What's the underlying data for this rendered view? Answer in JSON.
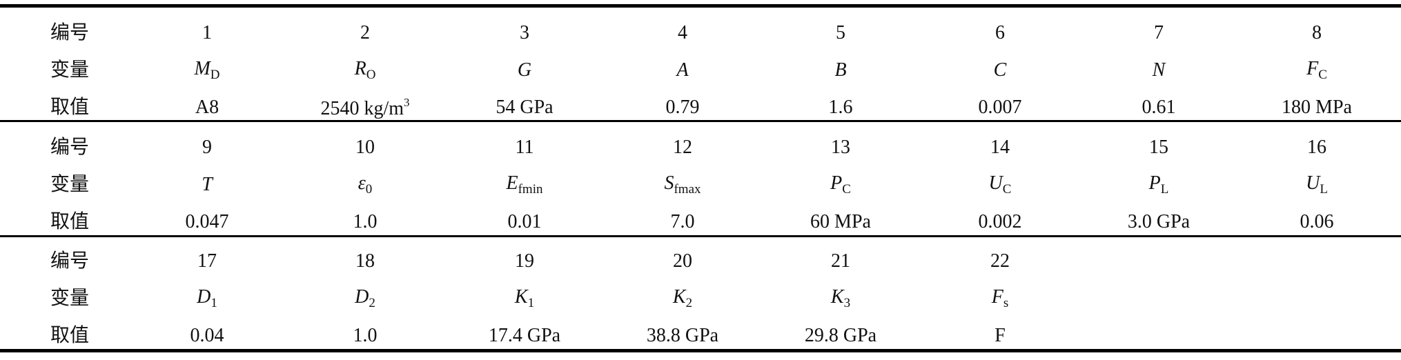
{
  "blocks": [
    {
      "row_labels": [
        "编号",
        "变量",
        "取值"
      ],
      "numbers": [
        1,
        2,
        3,
        4,
        5,
        6,
        7,
        8
      ],
      "variables": [
        {
          "base": "M",
          "sub": "D"
        },
        {
          "base": "R",
          "sub": "O"
        },
        {
          "base": "G"
        },
        {
          "base": "A"
        },
        {
          "base": "B"
        },
        {
          "base": "C"
        },
        {
          "base": "N"
        },
        {
          "base": "F",
          "sub": "C"
        }
      ],
      "values": [
        "A8",
        {
          "base": "2540 kg/m",
          "sup": "3"
        },
        "54 GPa",
        "0.79",
        "1.6",
        "0.007",
        "0.61",
        "180 MPa"
      ]
    },
    {
      "row_labels": [
        "编号",
        "变量",
        "取值"
      ],
      "numbers": [
        9,
        10,
        11,
        12,
        13,
        14,
        15,
        16
      ],
      "variables": [
        {
          "base": "T"
        },
        {
          "base": "ε",
          "sub": "0"
        },
        {
          "base": "E",
          "sub": "fmin"
        },
        {
          "base": "S",
          "sub": "fmax"
        },
        {
          "base": "P",
          "sub": "C"
        },
        {
          "base": "U",
          "sub": "C"
        },
        {
          "base": "P",
          "sub": "L"
        },
        {
          "base": "U",
          "sub": "L"
        }
      ],
      "values": [
        "0.047",
        "1.0",
        "0.01",
        "7.0",
        "60 MPa",
        "0.002",
        "3.0 GPa",
        "0.06"
      ]
    },
    {
      "row_labels": [
        "编号",
        "变量",
        "取值"
      ],
      "numbers": [
        17,
        18,
        19,
        20,
        21,
        22
      ],
      "variables": [
        {
          "base": "D",
          "sub": "1"
        },
        {
          "base": "D",
          "sub": "2"
        },
        {
          "base": "K",
          "sub": "1"
        },
        {
          "base": "K",
          "sub": "2"
        },
        {
          "base": "K",
          "sub": "3"
        },
        {
          "base": "F",
          "sub": "s"
        }
      ],
      "values": [
        "0.04",
        "1.0",
        "17.4 GPa",
        "38.8 GPa",
        "29.8 GPa",
        "F"
      ]
    }
  ]
}
